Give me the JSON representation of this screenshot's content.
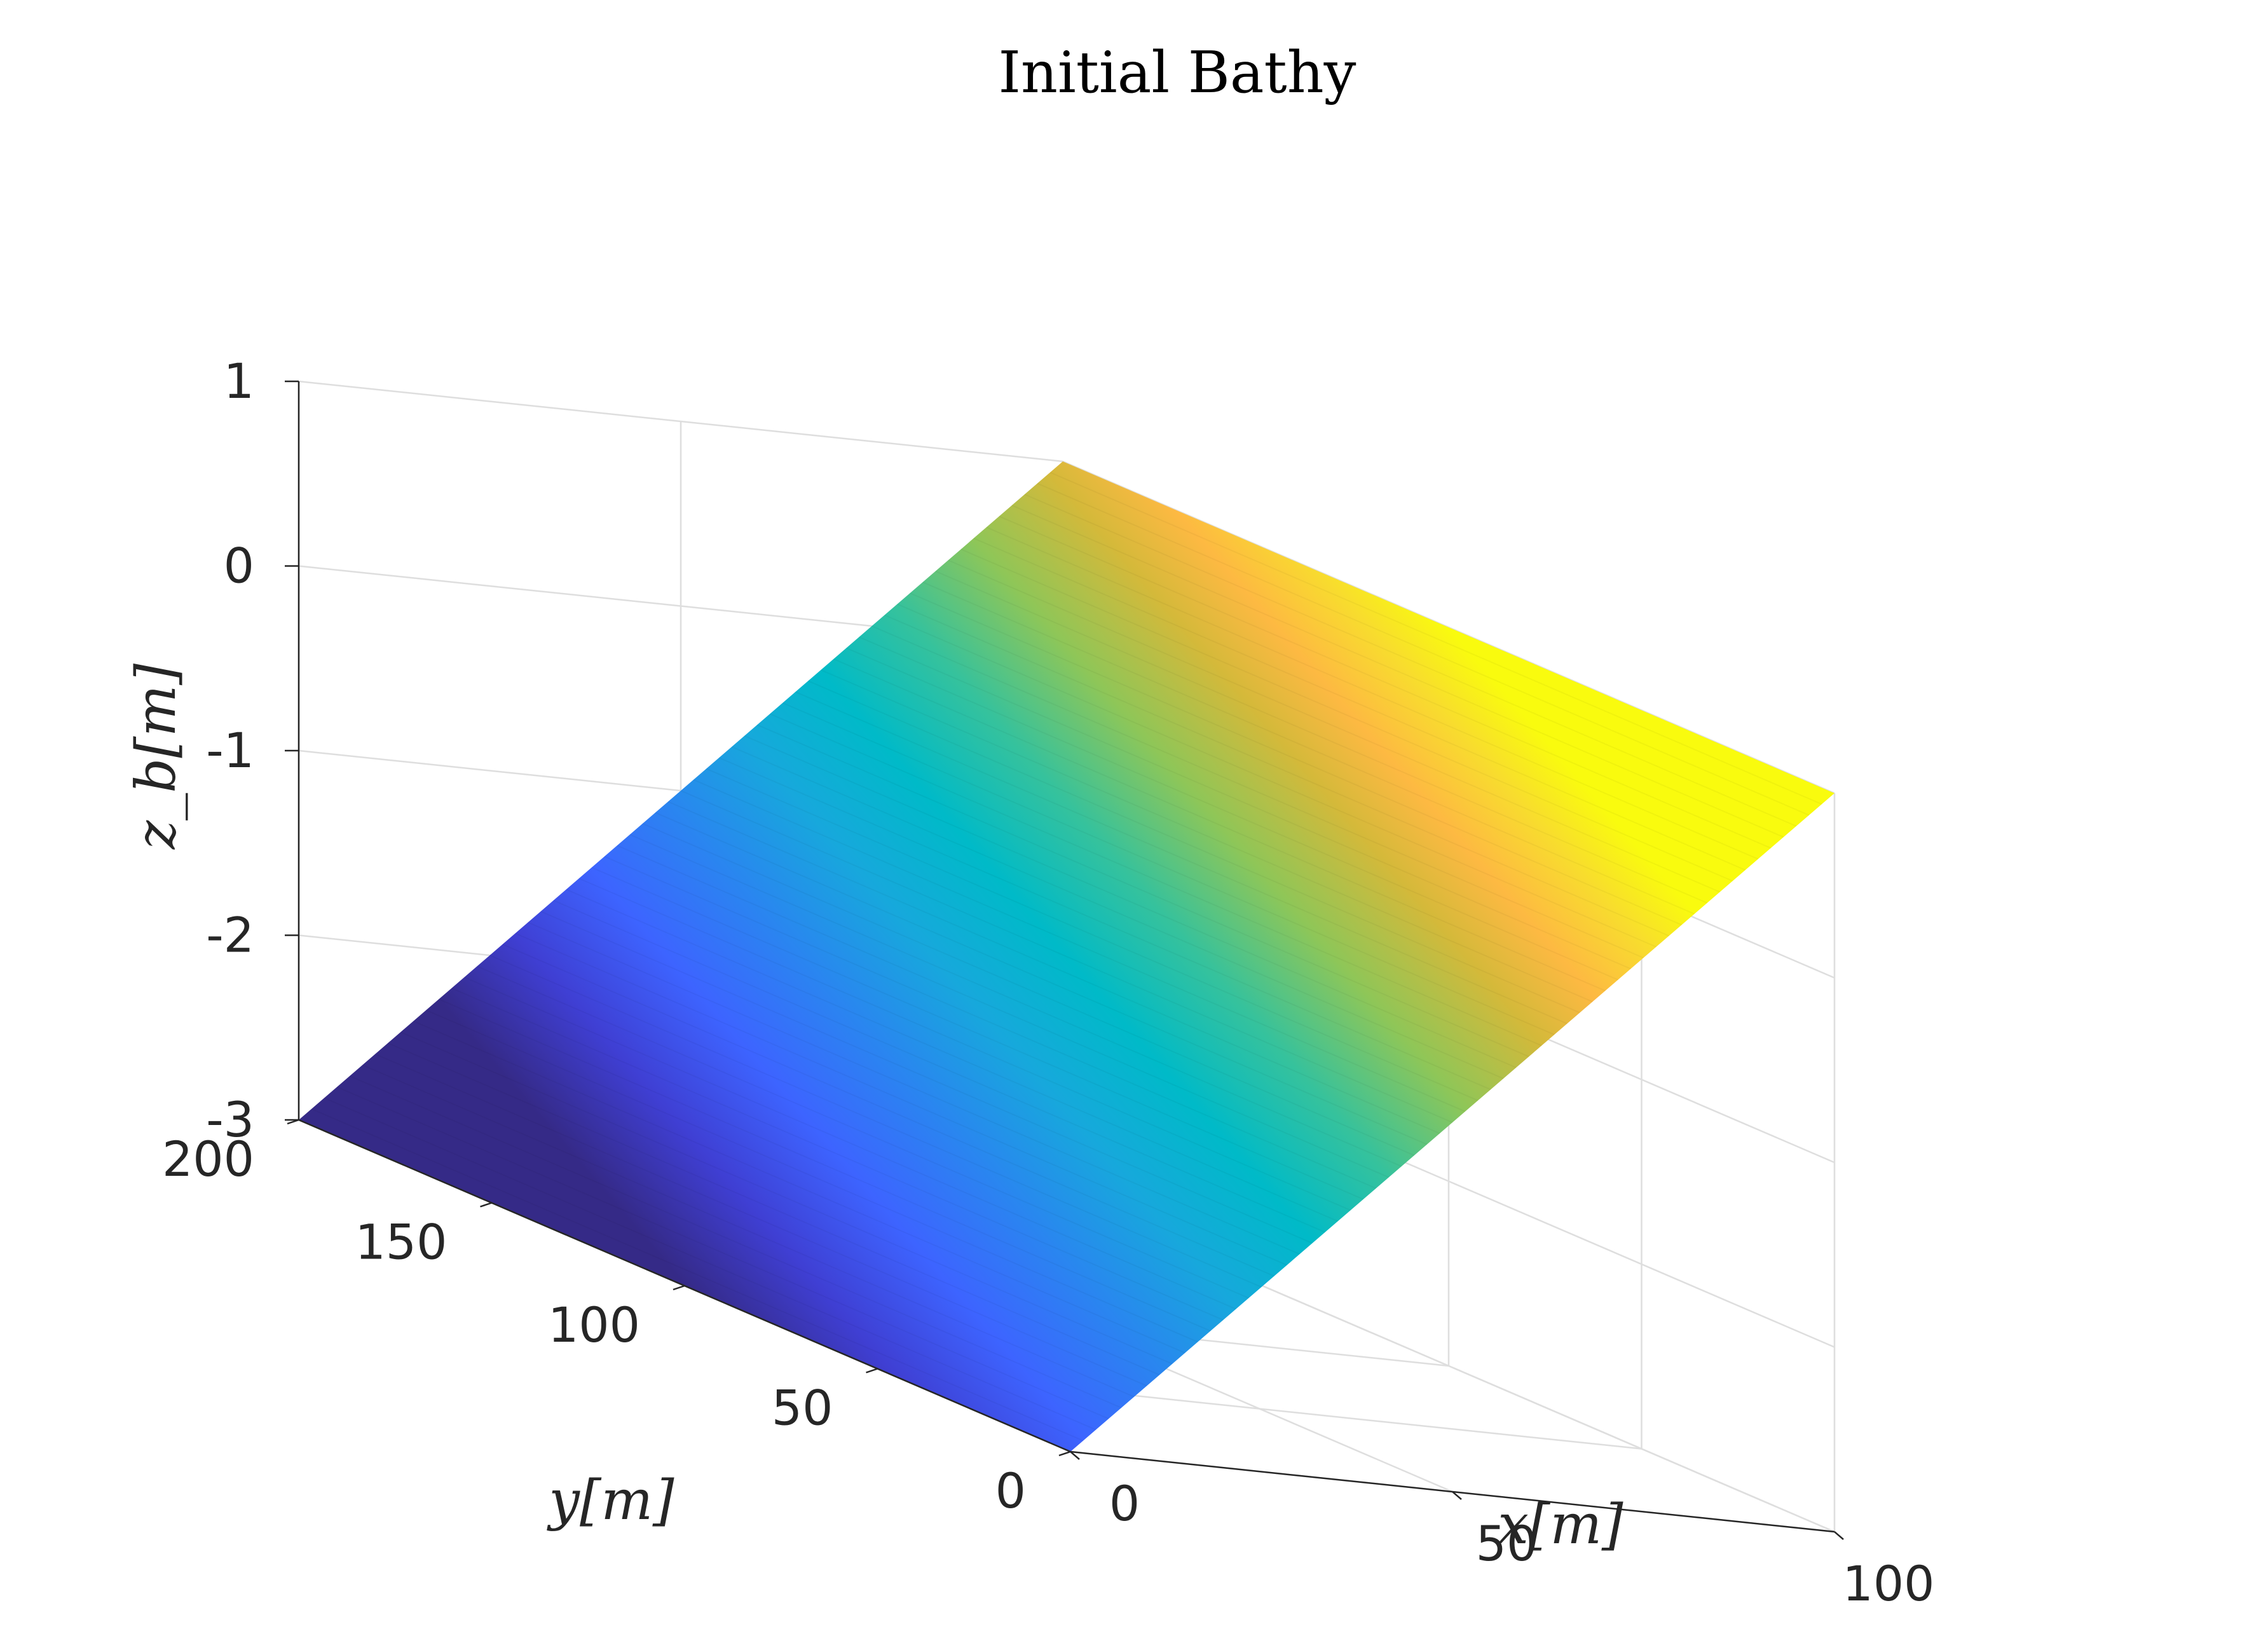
{
  "chart_data": {
    "type": "surface",
    "title": "Initial Bathy",
    "xlabel": "x[m]",
    "ylabel": "y[m]",
    "zlabel": "z_b[m]",
    "xlim": [
      0,
      100
    ],
    "ylim": [
      0,
      200
    ],
    "zlim": [
      -3,
      1
    ],
    "x_ticks": [
      0,
      50,
      100
    ],
    "y_ticks": [
      0,
      50,
      100,
      150,
      200
    ],
    "z_ticks": [
      -3,
      -2,
      -1,
      0,
      1
    ],
    "x_tick_labels": [
      "0",
      "50",
      "100"
    ],
    "y_tick_labels": [
      "0",
      "50",
      "100",
      "150",
      "200"
    ],
    "z_tick_labels": [
      "-3",
      "-2",
      "-1",
      "0",
      "1"
    ],
    "surface": {
      "description_of_values": "planar slope: z_b rises linearly with x, constant along y",
      "corners": [
        {
          "x": 0,
          "y": 0,
          "z": -3
        },
        {
          "x": 0,
          "y": 200,
          "z": -3
        },
        {
          "x": 100,
          "y": 0,
          "z": 1
        },
        {
          "x": 100,
          "y": 200,
          "z": 1
        }
      ]
    },
    "colormap": "parula",
    "grid": true
  }
}
